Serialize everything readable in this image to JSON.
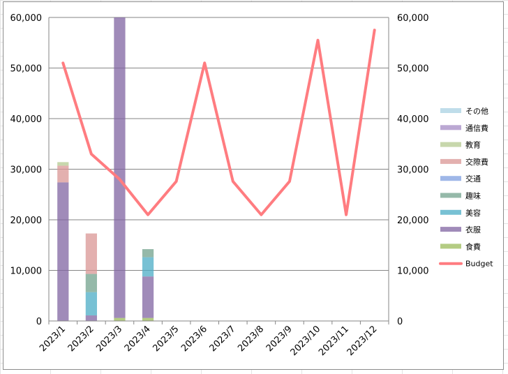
{
  "chart_data": {
    "type": "bar",
    "stacked": true,
    "categories": [
      "2023/1",
      "2023/2",
      "2023/3",
      "2023/4",
      "2023/5",
      "2023/6",
      "2023/7",
      "2023/8",
      "2023/9",
      "2023/10",
      "2023/11",
      "2023/12"
    ],
    "y_ticks": [
      "0",
      "10,000",
      "20,000",
      "30,000",
      "40,000",
      "50,000",
      "60,000"
    ],
    "ylim": [
      0,
      60000
    ],
    "y2lim": [
      0,
      60000
    ],
    "grid": true,
    "legend_position": "right",
    "series": [
      {
        "name": "食費",
        "color": "#9bbb59",
        "values": [
          0,
          0,
          600,
          600,
          0,
          0,
          0,
          0,
          0,
          0,
          0,
          0
        ]
      },
      {
        "name": "衣服",
        "color": "#8064a2",
        "values": [
          27400,
          1100,
          59400,
          8200,
          0,
          0,
          0,
          0,
          0,
          0,
          0,
          0
        ]
      },
      {
        "name": "美容",
        "color": "#4bacc6",
        "values": [
          0,
          4600,
          0,
          3800,
          0,
          0,
          0,
          0,
          0,
          0,
          0,
          0
        ]
      },
      {
        "name": "趣味",
        "color": "#71a28c",
        "values": [
          0,
          3600,
          0,
          1600,
          0,
          0,
          0,
          0,
          0,
          0,
          0,
          0
        ]
      },
      {
        "name": "交通",
        "color": "#7f9fe0",
        "values": [
          0,
          0,
          0,
          0,
          0,
          0,
          0,
          0,
          0,
          0,
          0,
          0
        ]
      },
      {
        "name": "交際費",
        "color": "#d99594",
        "values": [
          3300,
          8000,
          0,
          0,
          0,
          0,
          0,
          0,
          0,
          0,
          0,
          0
        ]
      },
      {
        "name": "教育",
        "color": "#b4c990",
        "values": [
          700,
          0,
          0,
          0,
          0,
          0,
          0,
          0,
          0,
          0,
          0,
          0
        ]
      },
      {
        "name": "通信費",
        "color": "#a48bc4",
        "values": [
          0,
          0,
          0,
          0,
          0,
          0,
          0,
          0,
          0,
          0,
          0,
          0
        ]
      },
      {
        "name": "その他",
        "color": "#a9d2e3",
        "values": [
          0,
          0,
          0,
          0,
          0,
          0,
          0,
          0,
          0,
          0,
          0,
          0
        ]
      }
    ],
    "line": {
      "name": "Budget",
      "color": "#ff7c80",
      "values": [
        51000,
        33000,
        28000,
        21000,
        27600,
        51000,
        27600,
        21000,
        27600,
        55500,
        21000,
        57500
      ]
    }
  }
}
